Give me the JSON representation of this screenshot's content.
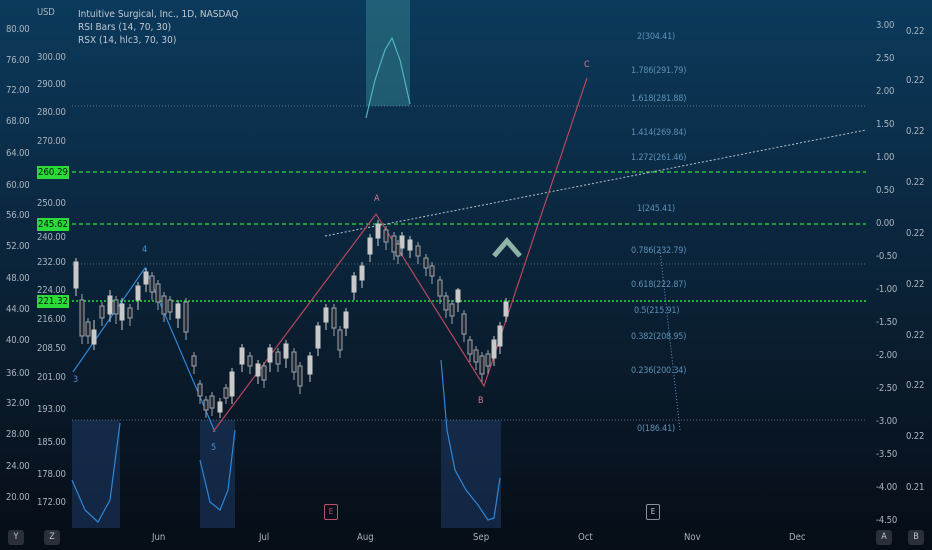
{
  "header": {
    "currency": "USD",
    "symbol_title": "Intuitive Surgical, Inc., 1D, NASDAQ",
    "indicator_1": "RSI Bars (14, 70, 30)",
    "indicator_2": "RSX (14, hlc3, 70, 30)"
  },
  "left_axis": [
    "80.00",
    "76.00",
    "72.00",
    "68.00",
    "64.00",
    "60.00",
    "56.00",
    "52.00",
    "48.00",
    "44.00",
    "40.00",
    "36.00",
    "32.00",
    "28.00",
    "24.00",
    "20.00"
  ],
  "price_axis": [
    "300.00",
    "290.00",
    "280.00",
    "270.00",
    "260.00",
    "250.00",
    "240.00",
    "232.00",
    "224.00",
    "216.00",
    "208.50",
    "201.00",
    "193.00",
    "185.00",
    "178.00",
    "172.00"
  ],
  "price_tags": [
    "260.29",
    "245.62",
    "221.32"
  ],
  "right_axis": [
    "3.00",
    "2.50",
    "2.00",
    "1.50",
    "1.00",
    "0.50",
    "0.00",
    "-0.50",
    "-1.00",
    "-1.50",
    "-2.00",
    "-2.50",
    "-3.00",
    "-3.50",
    "-4.00",
    "-4.50"
  ],
  "far_right_axis": [
    "0.22",
    "0.22",
    "0.22",
    "0.22",
    "0.22",
    "0.22",
    "0.22",
    "0.22",
    "0.22",
    "0.22",
    "0.22",
    "0.21",
    "0.21"
  ],
  "x_axis": [
    "Jun",
    "Jul",
    "Aug",
    "Sep",
    "Oct",
    "Nov",
    "Dec"
  ],
  "fib_levels": [
    "2(304.41)",
    "1.786(291.79)",
    "1.618(281.88)",
    "1.414(269.84)",
    "1.272(261.46)",
    "1(245.41)",
    "0.786(232.79)",
    "0.618(222.87)",
    "0.5(215.91)",
    "0.382(208.95)",
    "0.236(200.34)",
    "0(186.41)"
  ],
  "wave_labels": {
    "w3": "3",
    "w4": "4",
    "w5": "5",
    "wA": "A",
    "wB": "B",
    "wC": "C"
  },
  "event_markers": {
    "earnings_1": "E",
    "earnings_2": "E"
  },
  "bottom_buttons": {
    "left_1": "Y",
    "left_2": "Z",
    "right_1": "A",
    "right_2": "B"
  },
  "colors": {
    "bull_candle": "#c9c9c9",
    "bear_candle": "#3b3f48",
    "wave_line": "#c0506a",
    "fib_line": "#6aa7d6",
    "green_level": "#2adb3a",
    "zigzag": "#b5485c",
    "marker": "#8fb3a8"
  }
}
